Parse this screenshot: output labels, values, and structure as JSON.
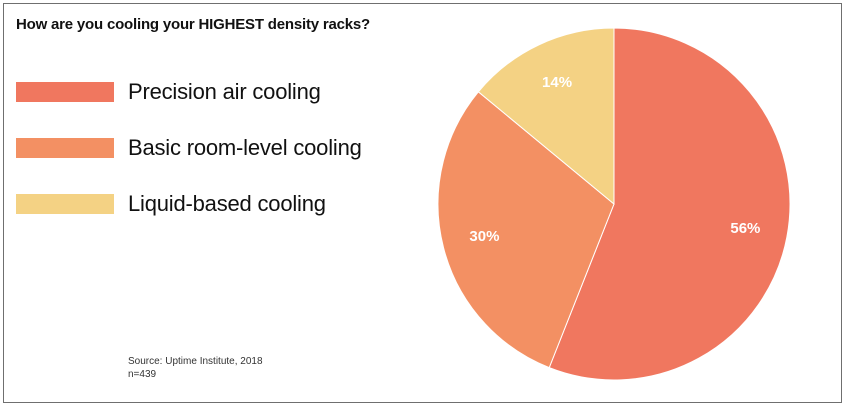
{
  "chart_data": {
    "type": "pie",
    "title": "How are you cooling your HIGHEST density racks?",
    "categories": [
      "Precision air cooling",
      "Basic room-level cooling",
      "Liquid-based cooling"
    ],
    "values": [
      56,
      30,
      14
    ],
    "labels": [
      "56%",
      "30%",
      "14%"
    ],
    "colors": [
      "#f0775f",
      "#f39063",
      "#f4d284"
    ],
    "legend_placement": "left"
  },
  "source": {
    "line1": "Source: Uptime Institute, 2018",
    "line2": "n=439"
  }
}
